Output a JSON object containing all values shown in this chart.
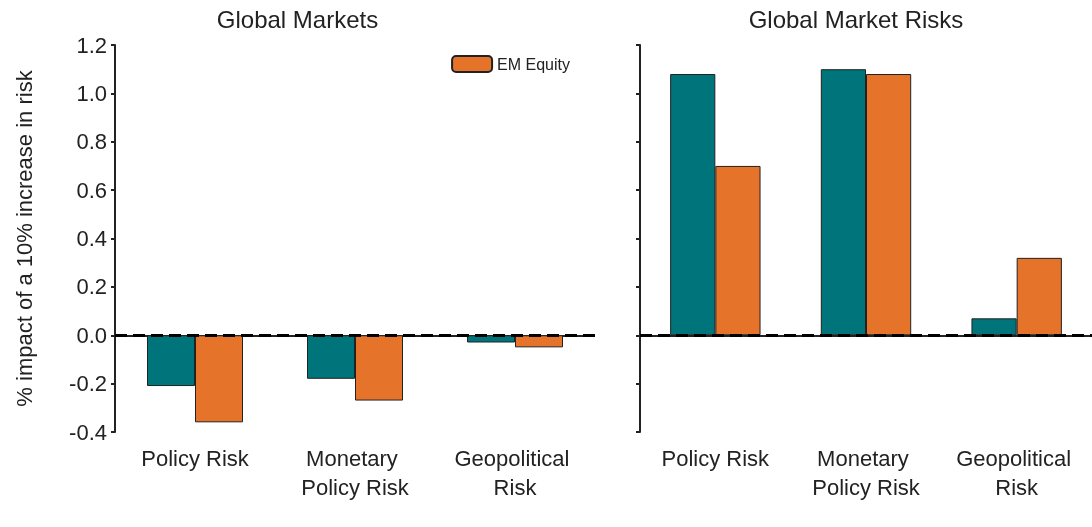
{
  "chart_data": [
    {
      "type": "bar",
      "title": "Global Markets",
      "ylabel": "% impact of a 10% increase in risk",
      "categories": [
        "Policy Risk",
        "Monetary Policy Risk",
        "Geopolitical Risk"
      ],
      "series": [
        {
          "color": "#00747b",
          "values": [
            -0.21,
            -0.18,
            -0.03
          ]
        },
        {
          "name": "EM Equity",
          "color": "#e5732a",
          "values": [
            -0.36,
            -0.27,
            -0.05
          ]
        }
      ],
      "ylim": [
        -0.4,
        1.2
      ],
      "yticks": [
        -0.4,
        -0.2,
        {
          "value": 0,
          "label": "0.0"
        },
        0.2,
        0.4,
        0.6,
        0.8,
        {
          "value": 1,
          "label": "1.0"
        },
        1.2
      ],
      "grid": false,
      "legend": "top right",
      "ref_lines": [
        {
          "axis": "y",
          "value": 0,
          "color": "#000000",
          "line_style": "dashed"
        }
      ]
    },
    {
      "type": "bar",
      "title": "Global Market Risks",
      "categories": [
        "Policy Risk",
        "Monetary Policy Risk",
        "Geopolitical Risk"
      ],
      "series": [
        {
          "color": "#00747b",
          "values": [
            1.08,
            1.1,
            0.07
          ]
        },
        {
          "color": "#e5732a",
          "values": [
            0.7,
            1.08,
            0.32
          ]
        }
      ],
      "ylim": [
        -0.4,
        1.2
      ],
      "yticks": [
        -0.4,
        -0.2,
        0,
        0.2,
        0.4,
        0.6,
        0.8,
        1,
        1.2
      ],
      "grid": false,
      "tick_labels": "x",
      "ref_lines": [
        {
          "axis": "y",
          "value": 0,
          "color": "#000000",
          "line_style": "dashed"
        }
      ]
    }
  ]
}
